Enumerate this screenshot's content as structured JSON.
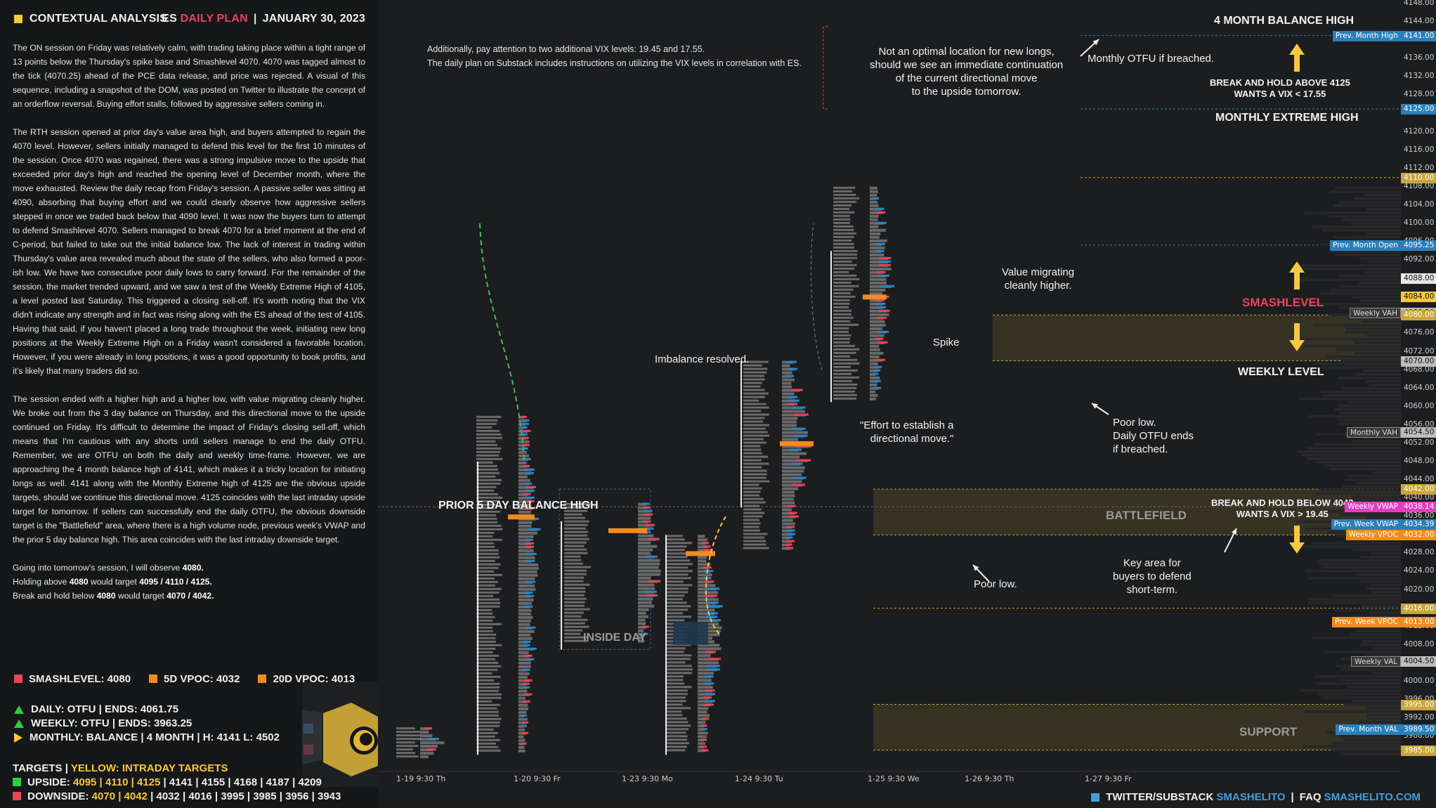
{
  "header": {
    "panel_title": "CONTEXTUAL ANALYSIS",
    "plan_prefix": "ES",
    "plan_name": "DAILY PLAN",
    "plan_date": "JANUARY 30, 2023"
  },
  "body": {
    "p1": "The ON session on Friday was relatively calm, with trading taking place within a tight range of 13 points below the Thursday's spike base and Smashlevel 4070. 4070 was tagged almost to the tick (4070.25) ahead of the PCE data release, and price was rejected. A visual of this sequence, including a snapshot of the DOM, was posted on Twitter to illustrate the concept of an orderflow reversal. Buying effort stalls, followed by aggressive sellers coming in.",
    "p2": "The RTH session opened at prior day's value area high, and buyers attempted to regain the 4070 level. However, sellers initially managed to defend this level for the first 10 minutes of the session. Once 4070 was regained, there was a strong impulsive move to the upside that exceeded prior day's high and reached the opening level of December month, where the move exhausted. Review the daily recap from Friday's session. A passive seller was sitting at 4090, absorbing that buying effort and we could clearly observe how aggressive sellers stepped in once we traded back below that 4090 level. It was now the buyers turn to attempt to defend Smashlevel 4070. Sellers managed to break 4070 for a brief moment at the end of C-period, but failed to take out the initial balance low. The lack of interest in trading within Thursday's value area revealed much about the state of the sellers, who also formed a poor-ish low. We have two consecutive poor daily lows to carry forward. For the remainder of the session, the market trended upward, and we saw a test of the Weekly Extreme High of 4105, a level posted last Saturday. This triggered a closing sell-off. It's worth noting that the VIX didn't indicate any strength and in fact was rising along with the ES ahead of the test of 4105. Having that said, if you haven't placed a long trade throughout the week, initiating new long positions at the Weekly Extreme High on a Friday wasn't considered a favorable location. However, if you were already in long positions, it was a good opportunity to book profits, and it's likely that many traders did so.",
    "p3": "The session ended with a higher high and a higher low, with value migrating cleanly higher. We broke out from the 3 day balance on Thursday, and this directional move to the upside continued on Friday. It's difficult to determine the impact of Friday's closing sell-off, which means that I'm cautious with any shorts until sellers manage to end the daily OTFU. Remember, we are OTFU on both the daily and weekly time-frame. However, we are approaching the 4 month balance high of 4141, which makes it a tricky location for initiating longs as well. 4141 along with the Monthly Extreme high of 4125 are the obvious upside targets, should we continue this directional move. 4125 coincides with the last intraday upside target for tomorrow. If sellers can successfully end the daily OTFU, the obvious downside target is the \"Battlefield\" area, where there is a high volume node, previous week's VWAP and the prior 5 day balance high. This area coincides with the last intraday downside target.",
    "obs_prefix": "Going into tomorrow's session, I will observe ",
    "obs_level": "4080.",
    "hold_above_prefix": "Holding above ",
    "hold_above_level": "4080",
    "hold_above_mid": " would target ",
    "hold_above_targets": "4095 / 4110 / 4125.",
    "break_below_prefix": "Break and hold below ",
    "break_below_level": "4080",
    "break_below_mid": " would target ",
    "break_below_targets": "4070 / 4042."
  },
  "levels": {
    "smashlevel": "SMASHLEVEL: 4080",
    "vpoc5d": "5D VPOC: 4032",
    "vpoc20d": "20D VPOC: 4013"
  },
  "status": {
    "daily": "DAILY: OTFU  |  ENDS: 4061.75",
    "weekly": "WEEKLY: OTFU  |  ENDS: 3963.25",
    "monthly": "MONTHLY: BALANCE  |  4 MONTH  |  H: 4141 L: 4502"
  },
  "targets": {
    "label": "TARGETS  |  ",
    "label_yellow": "YELLOW: INTRADAY TARGETS",
    "upside_label": "UPSIDE: ",
    "upside_intraday": "4095 | 4110 | 4125",
    "upside_rest": " | 4141 | 4155 | 4168 | 4187 | 4209",
    "downside_label": "DOWNSIDE: ",
    "downside_intraday": "4070 | 4042",
    "downside_rest": " | 4032 | 4016 | 3995 | 3985 | 3956 | 3943"
  },
  "annotations": {
    "vix_line1": "Additionally, pay attention to two additional VIX levels: 19.45 and 17.55.",
    "vix_line2": "The daily plan on Substack includes instructions on utilizing the VIX levels in correlation with ES.",
    "balance_4m": "4 MONTH BALANCE HIGH",
    "monthly_otfu": "Monthly OTFU if breached.",
    "not_optimal": "Not an optimal location for new longs,\nshould we see an immediate continuation\nof the current directional move\nto the upside tomorrow.",
    "break_above": "BREAK AND HOLD ABOVE 4125\nWANTS A VIX < 17.55",
    "monthly_extreme": "MONTHLY EXTREME HIGH",
    "value_migrating": "Value migrating\ncleanly higher.",
    "smashlevel": "SMASHLEVEL",
    "spike": "Spike",
    "weekly_level": "WEEKLY LEVEL",
    "imbalance": "Imbalance resolved.",
    "effort": "\"Effort to establish a\ndirectional move.\"",
    "poor_low_otfu": "Poor low.\nDaily OTFU ends\nif breached.",
    "prior_5day": "PRIOR 5 DAY BALANCE HIGH",
    "battlefield": "BATTLEFIELD",
    "break_below": "BREAK AND HOLD BELOW 4042\nWANTS A VIX > 19.45",
    "key_area": "Key area for\nbuyers to defend\nshort-term.",
    "poor_low": "Poor low.",
    "inside_day": "INSIDE DAY",
    "support": "SUPPORT"
  },
  "price_axis": {
    "ticks": [
      "4148.00",
      "4144.00",
      "4140.00",
      "4136.00",
      "4132.00",
      "4128.00",
      "4124.00",
      "4120.00",
      "4116.00",
      "4112.00",
      "4108.00",
      "4104.00",
      "4100.00",
      "4096.00",
      "4092.00",
      "4088.00",
      "4084.00",
      "4080.00",
      "4076.00",
      "4072.00",
      "4068.00",
      "4064.00",
      "4060.00",
      "4056.00",
      "4052.00",
      "4048.00",
      "4044.00",
      "4040.00",
      "4036.00",
      "4032.00",
      "4028.00",
      "4024.00",
      "4020.00",
      "4016.00",
      "4012.00",
      "4008.00",
      "4004.00",
      "4000.00",
      "3996.00",
      "3992.00",
      "3988.00",
      "3984.00"
    ],
    "labels": [
      {
        "name": "Prev. Month High",
        "value": "4141.00",
        "color": "#2a7fb8"
      },
      {
        "name": "",
        "value": "4125.00",
        "color": "#2a7fb8"
      },
      {
        "name": "",
        "value": "4110.00",
        "color": "#c9a53a"
      },
      {
        "name": "Prev. Month Open",
        "value": "4095.25",
        "color": "#2a7fb8"
      },
      {
        "name": "",
        "value": "4088.00",
        "color": "#e6e6e6"
      },
      {
        "name": "",
        "value": "4084.00",
        "color": "#f5c842"
      },
      {
        "name": "Weekly VAH",
        "value": "4080.50",
        "color": "#bdbdbd"
      },
      {
        "name": "",
        "value": "4080.00",
        "color": "#c9a53a"
      },
      {
        "name": "",
        "value": "4070.00",
        "color": "#bdbdbd"
      },
      {
        "name": "Monthly VAH",
        "value": "4054.50",
        "color": "#bdbdbd"
      },
      {
        "name": "",
        "value": "4042.00",
        "color": "#c9a53a"
      },
      {
        "name": "Weekly VWAP",
        "value": "4038.14",
        "color": "#e040c0"
      },
      {
        "name": "Prev. Week VWAP",
        "value": "4034.39",
        "color": "#2a7fb8"
      },
      {
        "name": "Weekly VPOC",
        "value": "4032.00",
        "color": "#f08c1e"
      },
      {
        "name": "",
        "value": "4016.00",
        "color": "#c9a53a"
      },
      {
        "name": "Prev. Week VPOC",
        "value": "4013.00",
        "color": "#f08c1e"
      },
      {
        "name": "Weekly VAL",
        "value": "4004.50",
        "color": "#bdbdbd"
      },
      {
        "name": "",
        "value": "3995.00",
        "color": "#c9a53a"
      },
      {
        "name": "Prev. Month VAL",
        "value": "3989.50",
        "color": "#2a7fb8"
      },
      {
        "name": "",
        "value": "3985.00",
        "color": "#c9a53a"
      }
    ]
  },
  "time_axis": [
    "1-19  9:30 Th",
    "1-20  9:30 Fr",
    "1-23  9:30 Mo",
    "1-24  9:30 Tu",
    "1-25  9:30 We",
    "1-26  9:30 Th",
    "1-27  9:30 Fr"
  ],
  "footer": {
    "twitter_label": "TWITTER/SUBSTACK",
    "handle": "SMASHELITO",
    "faq_label": "FAQ",
    "site": "SMASHELITO.COM"
  },
  "colors": {
    "background": "#1c1d1f",
    "panel": "#161718",
    "accent_yellow": "#f5c842",
    "red": "#e8445a",
    "blue": "#3ea0e0",
    "orange": "#f08c1e",
    "green": "#2ecc40",
    "zone_fill": "#3a3626"
  },
  "icons": [
    "square-bullet-icon",
    "triangle-up-icon",
    "triangle-right-icon",
    "arrow-up-icon",
    "arrow-down-icon",
    "mascot-eye-icon"
  ]
}
